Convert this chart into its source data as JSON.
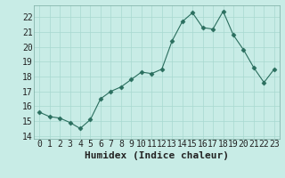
{
  "x": [
    0,
    1,
    2,
    3,
    4,
    5,
    6,
    7,
    8,
    9,
    10,
    11,
    12,
    13,
    14,
    15,
    16,
    17,
    18,
    19,
    20,
    21,
    22,
    23
  ],
  "y": [
    15.6,
    15.3,
    15.2,
    14.9,
    14.5,
    15.1,
    16.5,
    17.0,
    17.3,
    17.8,
    18.3,
    18.2,
    18.5,
    20.4,
    21.7,
    22.3,
    21.3,
    21.2,
    22.4,
    20.8,
    19.8,
    18.6,
    17.6,
    18.5
  ],
  "xlabel": "Humidex (Indice chaleur)",
  "ylim": [
    13.8,
    22.8
  ],
  "xlim": [
    -0.5,
    23.5
  ],
  "yticks": [
    14,
    15,
    16,
    17,
    18,
    19,
    20,
    21,
    22
  ],
  "line_color": "#2a6e5e",
  "marker": "D",
  "marker_size": 2.5,
  "bg_color": "#c8ece6",
  "grid_color": "#a8d8d0",
  "font_color": "#222222",
  "xlabel_fontsize": 8,
  "tick_fontsize": 7
}
